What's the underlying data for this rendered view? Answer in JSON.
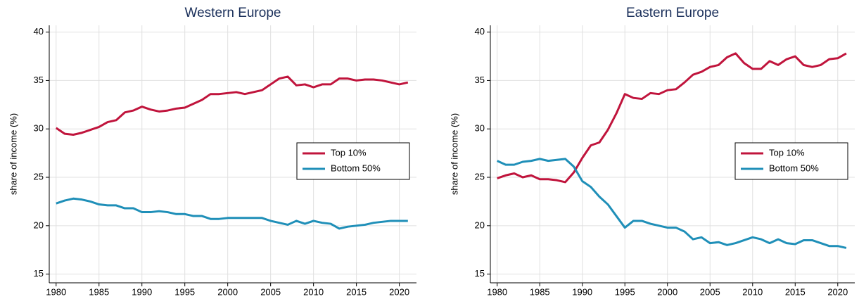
{
  "chart_data": [
    {
      "type": "line",
      "title": "Western Europe",
      "y_label": "share of income (%)",
      "x": [
        1980,
        1981,
        1982,
        1983,
        1984,
        1985,
        1986,
        1987,
        1988,
        1989,
        1990,
        1991,
        1992,
        1993,
        1994,
        1995,
        1996,
        1997,
        1998,
        1999,
        2000,
        2001,
        2002,
        2003,
        2004,
        2005,
        2006,
        2007,
        2008,
        2009,
        2010,
        2011,
        2012,
        2013,
        2014,
        2015,
        2016,
        2017,
        2018,
        2019,
        2020,
        2021
      ],
      "series": [
        {
          "name": "Top 10%",
          "color": "#c0143c",
          "values": [
            30.1,
            29.5,
            29.4,
            29.6,
            29.9,
            30.2,
            30.7,
            30.9,
            31.7,
            31.9,
            32.3,
            32.0,
            31.8,
            31.9,
            32.1,
            32.2,
            32.6,
            33.0,
            33.6,
            33.6,
            33.7,
            33.8,
            33.6,
            33.8,
            34.0,
            34.6,
            35.2,
            35.4,
            34.5,
            34.6,
            34.3,
            34.6,
            34.6,
            35.2,
            35.2,
            35.0,
            35.1,
            35.1,
            35.0,
            34.8,
            34.6,
            34.8
          ]
        },
        {
          "name": "Bottom 50%",
          "color": "#1f8fb8",
          "values": [
            22.3,
            22.6,
            22.8,
            22.7,
            22.5,
            22.2,
            22.1,
            22.1,
            21.8,
            21.8,
            21.4,
            21.4,
            21.5,
            21.4,
            21.2,
            21.2,
            21.0,
            21.0,
            20.7,
            20.7,
            20.8,
            20.8,
            20.8,
            20.8,
            20.8,
            20.5,
            20.3,
            20.1,
            20.5,
            20.2,
            20.5,
            20.3,
            20.2,
            19.7,
            19.9,
            20.0,
            20.1,
            20.3,
            20.4,
            20.5,
            20.5,
            20.5
          ]
        }
      ],
      "xlim": [
        1979.2,
        2022
      ],
      "xticks": [
        1980,
        1985,
        1990,
        1995,
        2000,
        2005,
        2010,
        2015,
        2020
      ],
      "ylim": [
        14.1,
        40.7
      ],
      "yticks": [
        15,
        20,
        25,
        30,
        35,
        40
      ],
      "grid": true,
      "legend": "center right"
    },
    {
      "type": "line",
      "title": "Eastern Europe",
      "y_label": "share of income (%)",
      "x": [
        1980,
        1981,
        1982,
        1983,
        1984,
        1985,
        1986,
        1987,
        1988,
        1989,
        1990,
        1991,
        1992,
        1993,
        1994,
        1995,
        1996,
        1997,
        1998,
        1999,
        2000,
        2001,
        2002,
        2003,
        2004,
        2005,
        2006,
        2007,
        2008,
        2009,
        2010,
        2011,
        2012,
        2013,
        2014,
        2015,
        2016,
        2017,
        2018,
        2019,
        2020,
        2021
      ],
      "series": [
        {
          "name": "Top 10%",
          "color": "#c0143c",
          "values": [
            24.9,
            25.2,
            25.4,
            25.0,
            25.2,
            24.8,
            24.8,
            24.7,
            24.5,
            25.5,
            27.0,
            28.3,
            28.6,
            29.9,
            31.6,
            33.6,
            33.2,
            33.1,
            33.7,
            33.6,
            34.0,
            34.1,
            34.8,
            35.6,
            35.9,
            36.4,
            36.6,
            37.4,
            37.8,
            36.8,
            36.2,
            36.2,
            37.0,
            36.6,
            37.2,
            37.5,
            36.6,
            36.4,
            36.6,
            37.2,
            37.3,
            37.8
          ]
        },
        {
          "name": "Bottom 50%",
          "color": "#1f8fb8",
          "values": [
            26.7,
            26.3,
            26.3,
            26.6,
            26.7,
            26.9,
            26.7,
            26.8,
            26.9,
            26.1,
            24.6,
            24.0,
            23.0,
            22.2,
            21.0,
            19.8,
            20.5,
            20.5,
            20.2,
            20.0,
            19.8,
            19.8,
            19.4,
            18.6,
            18.8,
            18.2,
            18.3,
            18.0,
            18.2,
            18.5,
            18.8,
            18.6,
            18.2,
            18.6,
            18.2,
            18.1,
            18.5,
            18.5,
            18.2,
            17.9,
            17.9,
            17.7
          ]
        }
      ],
      "xlim": [
        1979.2,
        2022
      ],
      "xticks": [
        1980,
        1985,
        1990,
        1995,
        2000,
        2005,
        2010,
        2015,
        2020
      ],
      "ylim": [
        14.1,
        40.7
      ],
      "yticks": [
        15,
        20,
        25,
        30,
        35,
        40
      ],
      "grid": true,
      "legend": "center right"
    }
  ]
}
